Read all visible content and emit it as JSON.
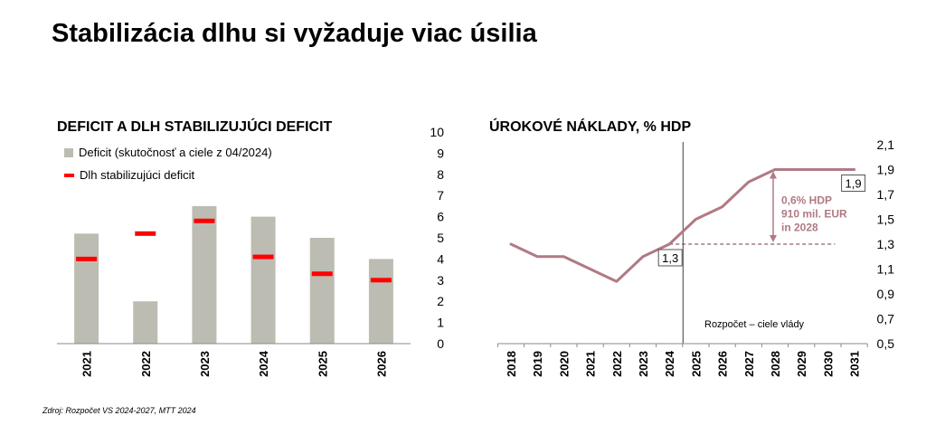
{
  "page": {
    "title": "Stabilizácia dlhu si vyžaduje viac úsilia",
    "source": "Zdroj: Rozpočet VS 2024-2027, MTT 2024"
  },
  "colors": {
    "bar": "#bdbcb2",
    "marker": "#ff0000",
    "line": "#b07a84",
    "annotation_text": "#b07a84"
  },
  "chart_data": [
    {
      "type": "bar",
      "title": "DEFICIT A DLH STABILIZUJÚCI DEFICIT",
      "categories": [
        "2021",
        "2022",
        "2023",
        "2024",
        "2025",
        "2026"
      ],
      "series": [
        {
          "name": "Deficit (skutočnosť a ciele z 04/2024)",
          "values": [
            5.2,
            2.0,
            6.5,
            6.0,
            5.0,
            4.0
          ]
        },
        {
          "name": "Dlh stabilizujúci deficit",
          "values": [
            4.0,
            5.2,
            5.8,
            4.1,
            3.3,
            3.0
          ]
        }
      ],
      "ylim": [
        0,
        10
      ],
      "yticks": [
        "0",
        "1",
        "2",
        "3",
        "4",
        "5",
        "6",
        "7",
        "8",
        "9",
        "10"
      ],
      "legend_position": "top-left"
    },
    {
      "type": "line",
      "title": "ÚROKOVÉ NÁKLADY, % HDP",
      "x": [
        "2018",
        "2019",
        "2020",
        "2021",
        "2022",
        "2023",
        "2024",
        "2025",
        "2026",
        "2027",
        "2028",
        "2029",
        "2030",
        "2031"
      ],
      "series": [
        {
          "values": [
            1.3,
            1.2,
            1.2,
            1.1,
            1.0,
            1.2,
            1.3,
            1.5,
            1.6,
            1.8,
            1.9,
            1.9,
            1.9,
            1.9
          ]
        }
      ],
      "ylim": [
        0.5,
        2.1
      ],
      "yticks": [
        "0,5",
        "0,7",
        "0,9",
        "1,1",
        "1,3",
        "1,5",
        "1,7",
        "1,9",
        "2,1"
      ],
      "reference_line": {
        "y": 1.3,
        "from": "2024",
        "to": "2030",
        "style": "dashed"
      },
      "divider": {
        "x": "2025",
        "label": "Rozpočet – ciele vlády"
      },
      "point_labels": [
        {
          "x": "2024",
          "y": 1.3,
          "text": "1,3"
        },
        {
          "x": "2031",
          "y": 1.9,
          "text": "1,9"
        }
      ],
      "annotation": {
        "x": "2028",
        "lines": [
          "0,6% HDP",
          "910 mil. EUR",
          "in 2028"
        ]
      }
    }
  ]
}
